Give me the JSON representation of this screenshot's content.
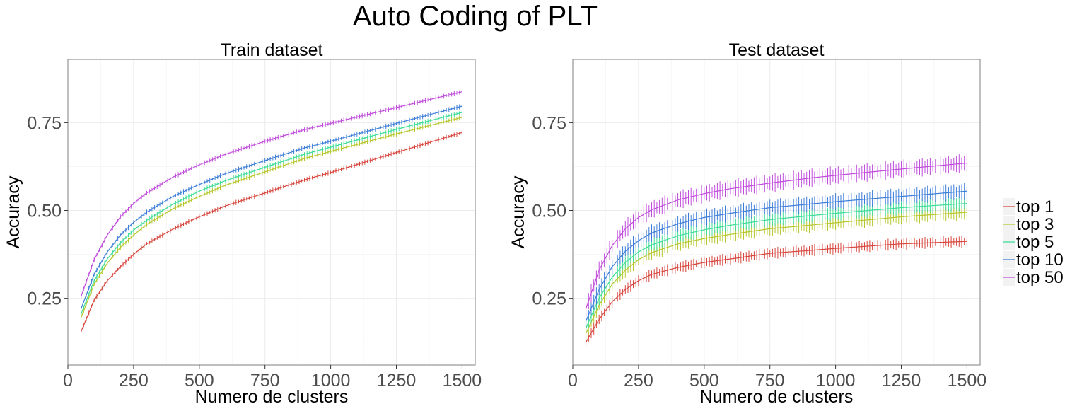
{
  "figure": {
    "title": "Auto Coding of PLT"
  },
  "chart_data": [
    {
      "type": "line",
      "title": "Train dataset",
      "xlabel": "Numero de clusters",
      "ylabel": "Accuracy",
      "xlim": [
        0,
        1550
      ],
      "ylim": [
        0.06,
        0.93
      ],
      "xticks": [
        0,
        250,
        500,
        750,
        1000,
        1250,
        1500
      ],
      "xtick_labels": [
        "0",
        "250",
        "500",
        "750",
        "1000",
        "1250",
        "1500"
      ],
      "yticks": [
        0.25,
        0.5,
        0.75
      ],
      "ytick_labels": [
        "0.25",
        "0.50",
        "0.75"
      ],
      "grid": true,
      "error_bars": true,
      "x": [
        50,
        100,
        150,
        200,
        250,
        300,
        400,
        500,
        600,
        750,
        900,
        1000,
        1250,
        1500
      ],
      "series": [
        {
          "name": "top 1",
          "color": "#d7453c",
          "values": [
            0.155,
            0.245,
            0.3,
            0.34,
            0.375,
            0.405,
            0.447,
            0.482,
            0.513,
            0.55,
            0.587,
            0.608,
            0.665,
            0.722
          ],
          "error": 0.006
        },
        {
          "name": "top 3",
          "color": "#b5c72c",
          "values": [
            0.195,
            0.29,
            0.35,
            0.395,
            0.43,
            0.46,
            0.505,
            0.54,
            0.572,
            0.61,
            0.648,
            0.668,
            0.718,
            0.765
          ],
          "error": 0.006
        },
        {
          "name": "top 5",
          "color": "#3ddc97",
          "values": [
            0.205,
            0.3,
            0.362,
            0.408,
            0.444,
            0.472,
            0.518,
            0.555,
            0.585,
            0.623,
            0.66,
            0.68,
            0.731,
            0.779
          ],
          "error": 0.006
        },
        {
          "name": "top 10",
          "color": "#3b7dd8",
          "values": [
            0.22,
            0.318,
            0.382,
            0.43,
            0.466,
            0.495,
            0.54,
            0.574,
            0.605,
            0.642,
            0.678,
            0.697,
            0.748,
            0.797
          ],
          "error": 0.006
        },
        {
          "name": "top 50",
          "color": "#c04bdc",
          "values": [
            0.255,
            0.36,
            0.43,
            0.482,
            0.52,
            0.55,
            0.595,
            0.63,
            0.66,
            0.697,
            0.73,
            0.748,
            0.793,
            0.838
          ],
          "error": 0.006
        }
      ]
    },
    {
      "type": "line",
      "title": "Test dataset",
      "xlabel": "Numero de clusters",
      "ylabel": "Accuracy",
      "xlim": [
        0,
        1550
      ],
      "ylim": [
        0.06,
        0.93
      ],
      "xticks": [
        0,
        250,
        500,
        750,
        1000,
        1250,
        1500
      ],
      "xtick_labels": [
        "0",
        "250",
        "500",
        "750",
        "1000",
        "1250",
        "1500"
      ],
      "yticks": [
        0.25,
        0.5,
        0.75
      ],
      "ytick_labels": [
        "0.25",
        "0.50",
        "0.75"
      ],
      "grid": true,
      "error_bars": true,
      "x": [
        50,
        100,
        150,
        200,
        250,
        300,
        400,
        500,
        600,
        750,
        900,
        1000,
        1250,
        1500
      ],
      "series": [
        {
          "name": "top 1",
          "color": "#d7453c",
          "values": [
            0.125,
            0.19,
            0.24,
            0.275,
            0.3,
            0.318,
            0.338,
            0.352,
            0.362,
            0.378,
            0.386,
            0.392,
            0.405,
            0.412
          ],
          "error": 0.014
        },
        {
          "name": "top 3",
          "color": "#b5c72c",
          "values": [
            0.15,
            0.23,
            0.29,
            0.33,
            0.36,
            0.38,
            0.405,
            0.42,
            0.432,
            0.448,
            0.458,
            0.465,
            0.482,
            0.495
          ],
          "error": 0.018
        },
        {
          "name": "top 5",
          "color": "#3ddc97",
          "values": [
            0.165,
            0.25,
            0.31,
            0.352,
            0.382,
            0.402,
            0.428,
            0.445,
            0.458,
            0.474,
            0.485,
            0.492,
            0.508,
            0.52
          ],
          "error": 0.018
        },
        {
          "name": "top 10",
          "color": "#3b7dd8",
          "values": [
            0.185,
            0.275,
            0.34,
            0.384,
            0.414,
            0.436,
            0.462,
            0.48,
            0.492,
            0.508,
            0.518,
            0.525,
            0.54,
            0.555
          ],
          "error": 0.02
        },
        {
          "name": "top 50",
          "color": "#c04bdc",
          "values": [
            0.22,
            0.33,
            0.4,
            0.448,
            0.48,
            0.502,
            0.53,
            0.548,
            0.562,
            0.578,
            0.592,
            0.6,
            0.618,
            0.635
          ],
          "error": 0.022
        }
      ]
    }
  ],
  "legend": {
    "placement": "right",
    "items": [
      "top 1",
      "top 3",
      "top 5",
      "top 10",
      "top 50"
    ]
  }
}
